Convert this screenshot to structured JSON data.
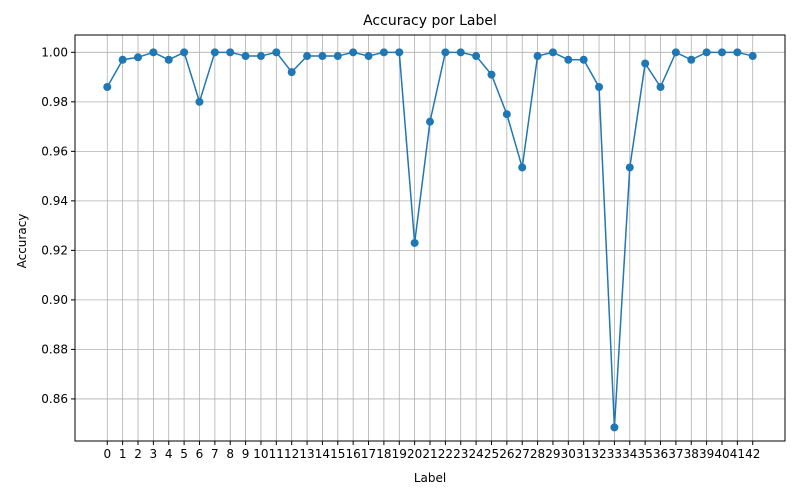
{
  "chart_data": {
    "type": "line",
    "title": "Accuracy por Label",
    "xlabel": "Label",
    "ylabel": "Accuracy",
    "x": [
      0,
      1,
      2,
      3,
      4,
      5,
      6,
      7,
      8,
      9,
      10,
      11,
      12,
      13,
      14,
      15,
      16,
      17,
      18,
      19,
      20,
      21,
      22,
      23,
      24,
      25,
      26,
      27,
      28,
      29,
      30,
      31,
      32,
      33,
      34,
      35,
      36,
      37,
      38,
      39,
      40,
      41,
      42
    ],
    "series": [
      {
        "values": [
          0.986,
          0.997,
          0.998,
          1.0,
          0.997,
          1.0,
          0.98,
          1.0,
          1.0,
          0.9985,
          0.9985,
          1.0,
          0.992,
          0.9985,
          0.9985,
          0.9985,
          1.0,
          0.9985,
          1.0,
          1.0,
          0.923,
          0.972,
          1.0,
          1.0,
          0.9985,
          0.991,
          0.975,
          0.9535,
          0.9985,
          1.0,
          0.997,
          0.997,
          0.986,
          0.8485,
          0.9535,
          0.9955,
          0.986,
          1.0,
          0.997,
          1.0,
          1.0,
          1.0,
          0.9985
        ],
        "color": "#1f77b4",
        "marker": "circle"
      }
    ],
    "yticks": [
      "0.86",
      "0.88",
      "0.90",
      "0.92",
      "0.94",
      "0.96",
      "0.98",
      "1.00"
    ],
    "ylim": [
      0.843,
      1.007
    ],
    "xlim": [
      -2.1,
      44.1
    ],
    "grid": true,
    "legend": "none"
  }
}
